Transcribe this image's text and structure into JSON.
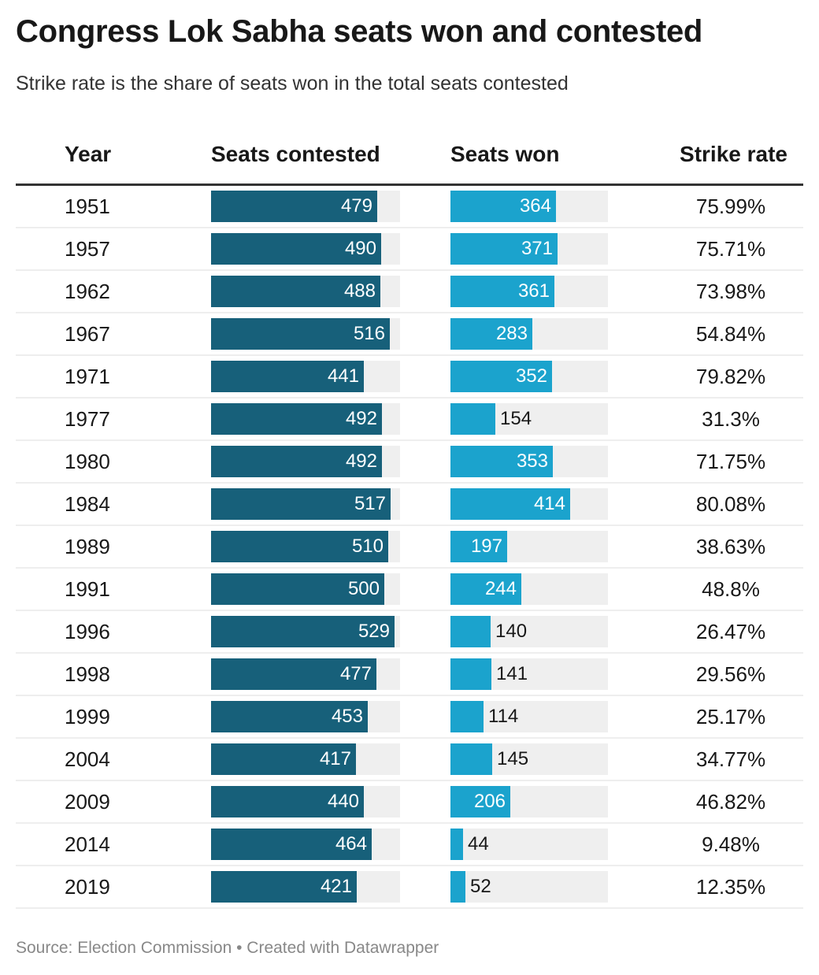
{
  "title": "Congress Lok Sabha seats won and contested",
  "subtitle": "Strike rate is the share of seats won in the total seats contested",
  "footer": "Source: Election Commission • Created with Datawrapper",
  "colors": {
    "contested": "#17607a",
    "won": "#1ba3cd",
    "track": "#efefef"
  },
  "chart_data": {
    "type": "table",
    "columns": [
      "Year",
      "Seats contested",
      "Seats won",
      "Strike rate"
    ],
    "rows": [
      {
        "year": "1951",
        "contested": 479,
        "won": 364,
        "rate": "75.99%"
      },
      {
        "year": "1957",
        "contested": 490,
        "won": 371,
        "rate": "75.71%"
      },
      {
        "year": "1962",
        "contested": 488,
        "won": 361,
        "rate": "73.98%"
      },
      {
        "year": "1967",
        "contested": 516,
        "won": 283,
        "rate": "54.84%"
      },
      {
        "year": "1971",
        "contested": 441,
        "won": 352,
        "rate": "79.82%"
      },
      {
        "year": "1977",
        "contested": 492,
        "won": 154,
        "rate": "31.3%"
      },
      {
        "year": "1980",
        "contested": 492,
        "won": 353,
        "rate": "71.75%"
      },
      {
        "year": "1984",
        "contested": 517,
        "won": 414,
        "rate": "80.08%"
      },
      {
        "year": "1989",
        "contested": 510,
        "won": 197,
        "rate": "38.63%"
      },
      {
        "year": "1991",
        "contested": 500,
        "won": 244,
        "rate": "48.8%"
      },
      {
        "year": "1996",
        "contested": 529,
        "won": 140,
        "rate": "26.47%"
      },
      {
        "year": "1998",
        "contested": 477,
        "won": 141,
        "rate": "29.56%"
      },
      {
        "year": "1999",
        "contested": 453,
        "won": 114,
        "rate": "25.17%"
      },
      {
        "year": "2004",
        "contested": 417,
        "won": 145,
        "rate": "34.77%"
      },
      {
        "year": "2009",
        "contested": 440,
        "won": 206,
        "rate": "46.82%"
      },
      {
        "year": "2014",
        "contested": 464,
        "won": 44,
        "rate": "9.48%"
      },
      {
        "year": "2019",
        "contested": 421,
        "won": 52,
        "rate": "12.35%"
      }
    ]
  }
}
